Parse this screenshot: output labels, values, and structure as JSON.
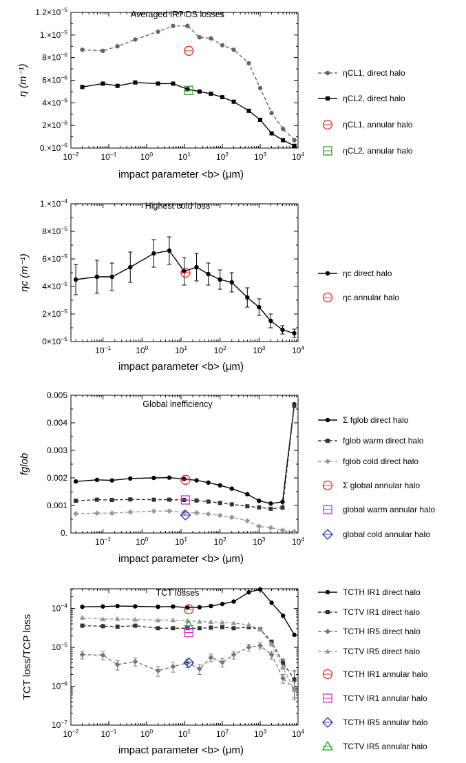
{
  "chart_data": [
    {
      "type": "line",
      "title": "Averaged IR7 DS losses",
      "xlabel": "impact parameter <b> (μm)",
      "ylabel": "η (m⁻¹)",
      "x_scale": "log",
      "xlim": [
        0.01,
        10000
      ],
      "ylim": [
        0,
        1.2e-05
      ],
      "x_ticks": [
        {
          "v": 0.01,
          "b": "10",
          "e": "−2"
        },
        {
          "v": 0.1,
          "b": "10",
          "e": "−1"
        },
        {
          "v": 1,
          "b": "10",
          "e": "0"
        },
        {
          "v": 10,
          "b": "10",
          "e": "1"
        },
        {
          "v": 100,
          "b": "10",
          "e": "2"
        },
        {
          "v": 1000,
          "b": "10",
          "e": "3"
        },
        {
          "v": 10000,
          "b": "10",
          "e": "4"
        }
      ],
      "y_ticks": [
        {
          "v": 0,
          "b": "0.×10",
          "e": "−6"
        },
        {
          "v": 2e-06,
          "b": "2×10",
          "e": "−6"
        },
        {
          "v": 4e-06,
          "b": "4×10",
          "e": "−6"
        },
        {
          "v": 6e-06,
          "b": "6×10",
          "e": "−6"
        },
        {
          "v": 8e-06,
          "b": "8×10",
          "e": "−6"
        },
        {
          "v": 1e-05,
          "b": "1.×10",
          "e": "−5"
        },
        {
          "v": 1.2e-05,
          "b": "1.2×10",
          "e": "−5"
        }
      ],
      "series": [
        {
          "name": "ηCL1, direct halo",
          "color": "#666666",
          "dash": true,
          "marker": "circle",
          "x": [
            0.02,
            0.07,
            0.17,
            0.5,
            2,
            5,
            12,
            25,
            50,
            100,
            200,
            500,
            1000,
            2000,
            4000,
            8000
          ],
          "y": [
            8.7e-06,
            8.6e-06,
            9e-06,
            9.6e-06,
            1.03e-05,
            1.08e-05,
            1.08e-05,
            9.8e-06,
            9.7e-06,
            9.1e-06,
            8.7e-06,
            7.5e-06,
            5.3e-06,
            3.1e-06,
            1.7e-06,
            7e-07
          ]
        },
        {
          "name": "ηCL2, direct halo",
          "color": "#000000",
          "dash": false,
          "marker": "square",
          "x": [
            0.02,
            0.07,
            0.17,
            0.5,
            2,
            5,
            12,
            25,
            50,
            100,
            200,
            500,
            1000,
            2000,
            4000,
            8000
          ],
          "y": [
            5.4e-06,
            5.7e-06,
            5.5e-06,
            5.8e-06,
            5.7e-06,
            5.7e-06,
            5.2e-06,
            5e-06,
            4.8e-06,
            4.5e-06,
            4.1e-06,
            3.3e-06,
            2.5e-06,
            1.3e-06,
            7e-07,
            2e-07
          ]
        },
        {
          "name": "ηCL1, annular halo",
          "color": "#e8251f",
          "marker": "open-circle",
          "x": [
            13
          ],
          "y": [
            8.6e-06
          ]
        },
        {
          "name": "ηCL2, annular halo",
          "color": "#1fa31f",
          "marker": "open-square",
          "x": [
            13
          ],
          "y": [
            5.1e-06
          ]
        }
      ]
    },
    {
      "type": "line",
      "title": "Highest cold loss",
      "xlabel": "impact parameter <b> (μm)",
      "ylabel": "ηc (m⁻¹)",
      "x_scale": "log",
      "xlim": [
        0.015,
        10000
      ],
      "ylim": [
        0,
        0.0001
      ],
      "x_ticks": [
        {
          "v": 0.1,
          "b": "10",
          "e": "−1"
        },
        {
          "v": 1,
          "b": "10",
          "e": "0"
        },
        {
          "v": 10,
          "b": "10",
          "e": "1"
        },
        {
          "v": 100,
          "b": "10",
          "e": "2"
        },
        {
          "v": 1000,
          "b": "10",
          "e": "3"
        },
        {
          "v": 10000,
          "b": "10",
          "e": "4"
        }
      ],
      "y_ticks": [
        {
          "v": 0,
          "b": "0×10",
          "e": "−5"
        },
        {
          "v": 2e-05,
          "b": "2×10",
          "e": "−5"
        },
        {
          "v": 4e-05,
          "b": "4×10",
          "e": "−5"
        },
        {
          "v": 6e-05,
          "b": "6×10",
          "e": "−5"
        },
        {
          "v": 8e-05,
          "b": "8×10",
          "e": "−5"
        },
        {
          "v": 0.0001,
          "b": "1.×10",
          "e": "−4"
        }
      ],
      "series": [
        {
          "name": "ηc direct halo",
          "color": "#000000",
          "dash": false,
          "marker": "circle",
          "x": [
            0.02,
            0.07,
            0.17,
            0.5,
            2,
            5,
            12,
            25,
            50,
            100,
            200,
            500,
            1000,
            2000,
            4000,
            8000
          ],
          "y": [
            4.5e-05,
            4.7e-05,
            4.7e-05,
            5.4e-05,
            6.4e-05,
            6.6e-05,
            5.1e-05,
            5.4e-05,
            4.9e-05,
            4.5e-05,
            4.3e-05,
            3.2e-05,
            2.5e-05,
            1.5e-05,
            8.5e-06,
            6e-06
          ],
          "err": [
            1.1e-05,
            1.2e-05,
            1e-05,
            1.1e-05,
            1e-05,
            1e-05,
            1e-05,
            1e-05,
            8e-06,
            7e-06,
            7e-06,
            7e-06,
            6e-06,
            5e-06,
            3e-06,
            3e-06
          ]
        },
        {
          "name": "ηc annular halo",
          "color": "#e8251f",
          "marker": "open-circle",
          "x": [
            13
          ],
          "y": [
            5e-05
          ]
        }
      ]
    },
    {
      "type": "line",
      "title": "Global inefficiency",
      "xlabel": "impact parameter <b> (μm)",
      "ylabel": "fglob",
      "x_scale": "log",
      "xlim": [
        0.015,
        10000
      ],
      "ylim": [
        0,
        0.005
      ],
      "x_ticks": [
        {
          "v": 0.1,
          "b": "10",
          "e": "−1"
        },
        {
          "v": 1,
          "b": "10",
          "e": "0"
        },
        {
          "v": 10,
          "b": "10",
          "e": "1"
        },
        {
          "v": 100,
          "b": "10",
          "e": "2"
        },
        {
          "v": 1000,
          "b": "10",
          "e": "3"
        },
        {
          "v": 10000,
          "b": "10",
          "e": "4"
        }
      ],
      "y_ticks": [
        {
          "v": 0,
          "b": "0.",
          "e": ""
        },
        {
          "v": 0.001,
          "b": "0.001",
          "e": ""
        },
        {
          "v": 0.002,
          "b": "0.002",
          "e": ""
        },
        {
          "v": 0.003,
          "b": "0.003",
          "e": ""
        },
        {
          "v": 0.004,
          "b": "0.004",
          "e": ""
        },
        {
          "v": 0.005,
          "b": "0.005",
          "e": ""
        }
      ],
      "series": [
        {
          "name": "Σ fglob direct halo",
          "color": "#000000",
          "dash": false,
          "marker": "circle",
          "x": [
            0.02,
            0.07,
            0.17,
            0.5,
            2,
            5,
            12,
            25,
            50,
            100,
            200,
            500,
            1000,
            2000,
            4000,
            8000
          ],
          "y": [
            0.00187,
            0.00193,
            0.00191,
            0.00198,
            0.002,
            0.00201,
            0.00196,
            0.00191,
            0.00183,
            0.00173,
            0.00161,
            0.00141,
            0.00117,
            0.00107,
            0.00113,
            0.00467
          ]
        },
        {
          "name": "fglob warm direct halo",
          "color": "#333333",
          "dash": true,
          "marker": "square",
          "x": [
            0.02,
            0.07,
            0.17,
            0.5,
            2,
            5,
            12,
            25,
            50,
            100,
            200,
            500,
            1000,
            2000,
            4000,
            8000
          ],
          "y": [
            0.00117,
            0.00121,
            0.0012,
            0.00122,
            0.00121,
            0.00121,
            0.0012,
            0.00118,
            0.00114,
            0.00109,
            0.00104,
            0.00097,
            0.00093,
            0.00088,
            0.00092,
            0.00462
          ]
        },
        {
          "name": "fglob cold direct halo",
          "color": "#999999",
          "dash": true,
          "marker": "diamond",
          "x": [
            0.02,
            0.07,
            0.17,
            0.5,
            2,
            5,
            12,
            25,
            50,
            100,
            200,
            500,
            1000,
            2000,
            4000,
            8000
          ],
          "y": [
            0.0007,
            0.00072,
            0.00072,
            0.00076,
            0.00079,
            0.0008,
            0.00075,
            0.00073,
            0.00069,
            0.00064,
            0.00057,
            0.00044,
            0.00024,
            0.00019,
            0.0001,
            5e-05
          ]
        },
        {
          "name": "Σ global annular halo",
          "color": "#e8251f",
          "marker": "open-circle",
          "x": [
            13
          ],
          "y": [
            0.00193
          ]
        },
        {
          "name": "global warm annular halo",
          "color": "#d12ad1",
          "marker": "open-square",
          "x": [
            13
          ],
          "y": [
            0.0012
          ]
        },
        {
          "name": "global cold annular halo",
          "color": "#2230c0",
          "marker": "open-diamond",
          "x": [
            13
          ],
          "y": [
            0.00065
          ]
        }
      ]
    },
    {
      "type": "line",
      "title": "TCT losses",
      "xlabel": "impact parameter <b> (μm)",
      "ylabel": "TCT loss/TCP loss",
      "x_scale": "log",
      "y_scale": "log",
      "xlim": [
        0.01,
        10000
      ],
      "ylim": [
        1e-07,
        0.00032
      ],
      "x_ticks": [
        {
          "v": 0.01,
          "b": "10",
          "e": "−2"
        },
        {
          "v": 0.1,
          "b": "10",
          "e": "−1"
        },
        {
          "v": 1,
          "b": "10",
          "e": "0"
        },
        {
          "v": 10,
          "b": "10",
          "e": "1"
        },
        {
          "v": 100,
          "b": "10",
          "e": "2"
        },
        {
          "v": 1000,
          "b": "10",
          "e": "3"
        },
        {
          "v": 10000,
          "b": "10",
          "e": "4"
        }
      ],
      "y_ticks": [
        {
          "v": 1e-07,
          "b": "10",
          "e": "−7"
        },
        {
          "v": 1e-06,
          "b": "10",
          "e": "−6"
        },
        {
          "v": 1e-05,
          "b": "10",
          "e": "−5"
        },
        {
          "v": 0.0001,
          "b": "10",
          "e": "−4"
        }
      ],
      "series": [
        {
          "name": "TCTH IR1 direct halo",
          "color": "#000000",
          "dash": false,
          "marker": "circle",
          "x": [
            0.02,
            0.07,
            0.17,
            0.5,
            2,
            5,
            12,
            25,
            50,
            100,
            200,
            500,
            1000,
            2000,
            4000,
            8000
          ],
          "y": [
            0.00011,
            0.000112,
            0.000115,
            0.000113,
            0.00011,
            0.000112,
            0.000105,
            0.000107,
            0.000115,
            0.00013,
            0.00015,
            0.00026,
            0.00031,
            0.00014,
            6.5e-05,
            2.1e-05
          ]
        },
        {
          "name": "TCTV IR1 direct halo",
          "color": "#333333",
          "dash": true,
          "marker": "square",
          "x": [
            0.02,
            0.07,
            0.17,
            0.5,
            2,
            5,
            12,
            25,
            50,
            100,
            200,
            500,
            1000,
            2000,
            4000,
            8000
          ],
          "y": [
            3.6e-05,
            3.5e-05,
            3.4e-05,
            3.6e-05,
            3.1e-05,
            3.1e-05,
            3.1e-05,
            3.1e-05,
            3.2e-05,
            3.3e-05,
            3.1e-05,
            3.3e-05,
            2.9e-05,
            1.4e-05,
            4e-06,
            1.5e-06
          ],
          "err": [
            0,
            0,
            0,
            0,
            0,
            0,
            0,
            0,
            0,
            0,
            0,
            0,
            0,
            0,
            1e-06,
            1e-06
          ]
        },
        {
          "name": "TCTH IR5 direct halo",
          "color": "#777777",
          "dash": true,
          "marker": "diamond",
          "x": [
            0.02,
            0.07,
            0.17,
            0.5,
            2,
            5,
            12,
            25,
            50,
            100,
            200,
            500,
            1000,
            2000,
            4000,
            8000
          ],
          "y": [
            6.5e-06,
            6.3e-06,
            3.6e-06,
            4.3e-06,
            2.5e-06,
            3.2e-06,
            4e-06,
            2.8e-06,
            5.5e-06,
            4.1e-06,
            6.5e-06,
            1e-05,
            1.1e-05,
            6.5e-06,
            1.6e-06,
            8.5e-07
          ],
          "err": [
            1.5e-06,
            1.5e-06,
            1e-06,
            1e-06,
            7e-07,
            9e-07,
            1e-06,
            8e-07,
            1.2e-06,
            1e-06,
            1.5e-06,
            2e-06,
            2e-06,
            1.5e-06,
            4e-07,
            4e-07
          ]
        },
        {
          "name": "TCTV IR5 direct halo",
          "color": "#999999",
          "dash": true,
          "marker": "triangle",
          "x": [
            0.02,
            0.07,
            0.17,
            0.5,
            2,
            5,
            12,
            25,
            50,
            100,
            200,
            500,
            1000,
            2000,
            4000,
            8000
          ],
          "y": [
            5.8e-05,
            5.3e-05,
            5.4e-05,
            5.2e-05,
            5e-05,
            5e-05,
            4.8e-05,
            4.6e-05,
            4.5e-05,
            4.4e-05,
            4.2e-05,
            3.8e-05,
            2.9e-05,
            1.2e-05,
            3e-06,
            8e-07
          ]
        },
        {
          "name": "TCTH IR1 annular halo",
          "color": "#e8251f",
          "marker": "open-circle",
          "x": [
            13
          ],
          "y": [
            9.5e-05
          ]
        },
        {
          "name": "TCTV IR1 annular halo",
          "color": "#d12ad1",
          "marker": "open-square",
          "x": [
            13
          ],
          "y": [
            2.4e-05
          ]
        },
        {
          "name": "TCTH IR5 annular halo",
          "color": "#2230c0",
          "marker": "open-diamond",
          "x": [
            13
          ],
          "y": [
            4e-06
          ]
        },
        {
          "name": "TCTV IR5 annular halo",
          "color": "#1fa31f",
          "marker": "open-triangle",
          "x": [
            13
          ],
          "y": [
            3.6e-05
          ]
        }
      ]
    }
  ]
}
